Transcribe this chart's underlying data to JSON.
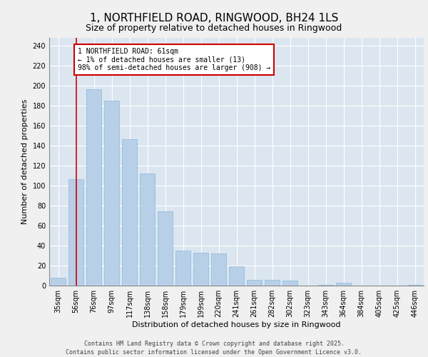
{
  "title1": "1, NORTHFIELD ROAD, RINGWOOD, BH24 1LS",
  "title2": "Size of property relative to detached houses in Ringwood",
  "xlabel": "Distribution of detached houses by size in Ringwood",
  "ylabel": "Number of detached properties",
  "categories": [
    "35sqm",
    "56sqm",
    "76sqm",
    "97sqm",
    "117sqm",
    "138sqm",
    "158sqm",
    "179sqm",
    "199sqm",
    "220sqm",
    "241sqm",
    "261sqm",
    "282sqm",
    "302sqm",
    "323sqm",
    "343sqm",
    "364sqm",
    "384sqm",
    "405sqm",
    "425sqm",
    "446sqm"
  ],
  "values": [
    8,
    106,
    196,
    185,
    146,
    112,
    74,
    35,
    33,
    32,
    19,
    6,
    6,
    5,
    0,
    1,
    3,
    0,
    0,
    0,
    1
  ],
  "bar_color": "#b8cfe8",
  "bar_edge_color": "#7aafd4",
  "background_color": "#dce6f0",
  "grid_color": "#ffffff",
  "annotation_box_text": "1 NORTHFIELD ROAD: 61sqm\n← 1% of detached houses are smaller (13)\n98% of semi-detached houses are larger (908) →",
  "annotation_box_color": "#cc0000",
  "vline_x": 1,
  "vline_color": "#cc0000",
  "ylim": [
    0,
    248
  ],
  "yticks": [
    0,
    20,
    40,
    60,
    80,
    100,
    120,
    140,
    160,
    180,
    200,
    220,
    240
  ],
  "footer_text": "Contains HM Land Registry data © Crown copyright and database right 2025.\nContains public sector information licensed under the Open Government Licence v3.0.",
  "title1_fontsize": 11,
  "title2_fontsize": 9,
  "xlabel_fontsize": 8,
  "ylabel_fontsize": 8,
  "tick_fontsize": 7,
  "annotation_fontsize": 7,
  "footer_fontsize": 6
}
